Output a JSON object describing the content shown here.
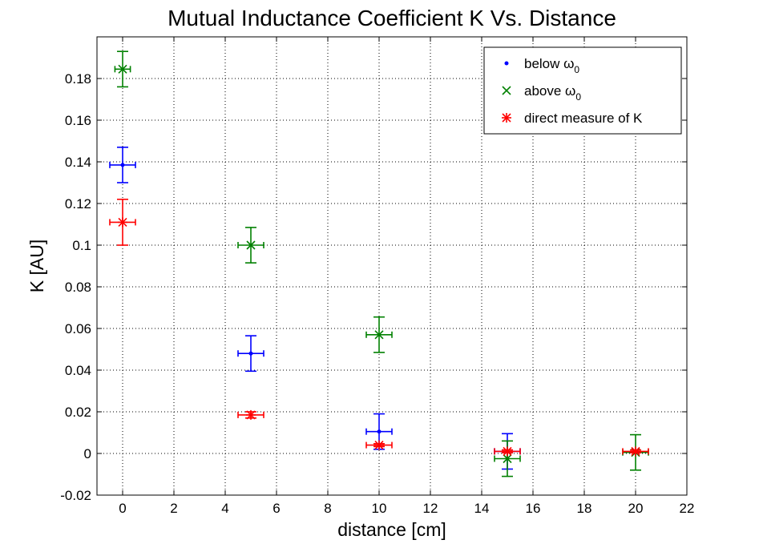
{
  "chart_data": {
    "type": "scatter",
    "title": "Mutual Inductance Coefficient K Vs. Distance",
    "xlabel": "distance [cm]",
    "ylabel": "K  [AU]",
    "xlim": [
      -1,
      22
    ],
    "ylim": [
      -0.02,
      0.2
    ],
    "xticks": [
      0,
      2,
      4,
      6,
      8,
      10,
      12,
      14,
      16,
      18,
      20,
      22
    ],
    "yticks": [
      -0.02,
      0,
      0.02,
      0.04,
      0.06,
      0.08,
      0.1,
      0.12,
      0.14,
      0.16,
      0.18
    ],
    "xtick_labels": [
      "0",
      "2",
      "4",
      "6",
      "8",
      "10",
      "12",
      "14",
      "16",
      "18",
      "20",
      "22"
    ],
    "ytick_labels": [
      "-0.02",
      "0",
      "0.02",
      "0.04",
      "0.06",
      "0.08",
      "0.1",
      "0.12",
      "0.14",
      "0.16",
      "0.18"
    ],
    "grid": true,
    "legend_position": "top-right",
    "series": [
      {
        "name": "below ω0",
        "legend_main": "below ω",
        "legend_sub": "0",
        "color": "#0000ff",
        "marker": "dot",
        "points": [
          {
            "x": 0,
            "y": 0.1385,
            "yerr": 0.0085,
            "xerr": 0.5
          },
          {
            "x": 5,
            "y": 0.048,
            "yerr": 0.0085,
            "xerr": 0.5
          },
          {
            "x": 10,
            "y": 0.0105,
            "yerr": 0.0085,
            "xerr": 0.5
          },
          {
            "x": 15,
            "y": 0.001,
            "yerr": 0.0085,
            "xerr": 0.5
          }
        ]
      },
      {
        "name": "above ω0",
        "legend_main": "above ω",
        "legend_sub": "0",
        "color": "#008000",
        "marker": "x",
        "points": [
          {
            "x": 0,
            "y": 0.1845,
            "yerr": 0.0085,
            "xerr": 0.3
          },
          {
            "x": 5,
            "y": 0.1,
            "yerr": 0.0085,
            "xerr": 0.5
          },
          {
            "x": 10,
            "y": 0.057,
            "yerr": 0.0085,
            "xerr": 0.5
          },
          {
            "x": 15,
            "y": -0.0025,
            "yerr": 0.0085,
            "xerr": 0.5
          },
          {
            "x": 20,
            "y": 0.0005,
            "yerr": 0.0085,
            "xerr": 0.5
          }
        ]
      },
      {
        "name": "direct measure of K",
        "legend_main": "direct measure of K",
        "legend_sub": "",
        "color": "#ff0000",
        "marker": "asterisk",
        "points": [
          {
            "x": 0,
            "y": 0.111,
            "yerr": 0.011,
            "xerr": 0.5
          },
          {
            "x": 5,
            "y": 0.0185,
            "yerr": 0.0015,
            "xerr": 0.5
          },
          {
            "x": 10,
            "y": 0.004,
            "yerr": 0.0007,
            "xerr": 0.5
          },
          {
            "x": 15,
            "y": 0.001,
            "yerr": 0.0007,
            "xerr": 0.5
          },
          {
            "x": 20,
            "y": 0.001,
            "yerr": 0.0007,
            "xerr": 0.5
          }
        ]
      }
    ]
  }
}
